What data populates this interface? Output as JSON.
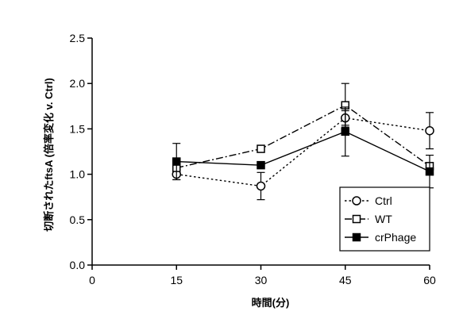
{
  "chart_data": {
    "type": "line",
    "xlabel": "時間(分)",
    "ylabel": "切断されたftsA (倍率変化 v. Ctrl)",
    "xlim": [
      0,
      60
    ],
    "ylim": [
      0,
      2.5
    ],
    "xticks": [
      0,
      15,
      30,
      45,
      60
    ],
    "xtick_labels": [
      "0",
      "15",
      "30",
      "45",
      "60"
    ],
    "yticks": [
      0,
      0.5,
      1.0,
      1.5,
      2.0,
      2.5
    ],
    "ytick_labels": [
      "0.0",
      "0.5",
      "1.0",
      "1.5",
      "2.0",
      "2.5"
    ],
    "grid": false,
    "legend_position": "bottom-right",
    "x": [
      15,
      30,
      45,
      60
    ],
    "series": [
      {
        "name": "Ctrl",
        "values": [
          1.0,
          0.87,
          1.62,
          1.48
        ],
        "errors": [
          0.06,
          0.15,
          0.08,
          0.2
        ],
        "marker": "open-circle",
        "line_style": "dotted",
        "color": "#000000"
      },
      {
        "name": "WT",
        "values": [
          1.07,
          1.28,
          1.76,
          1.09
        ],
        "errors": [
          0.0,
          0.0,
          0.24,
          0.0
        ],
        "marker": "open-square",
        "line_style": "dash-dot",
        "color": "#000000"
      },
      {
        "name": "crPhage",
        "values": [
          1.14,
          1.1,
          1.47,
          1.03
        ],
        "errors": [
          0.2,
          0.0,
          0.27,
          0.18
        ],
        "marker": "filled-square",
        "line_style": "solid",
        "color": "#000000"
      }
    ]
  }
}
